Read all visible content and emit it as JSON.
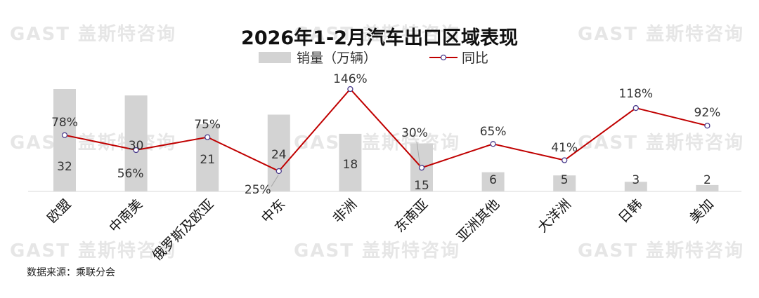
{
  "watermark": "GAST 盖斯特咨询",
  "source": "数据来源：乘联分会",
  "chart_data": {
    "type": "bar",
    "title": "2026年1-2月汽车出口区域表现",
    "legend_position": "top-center",
    "categories": [
      "欧盟",
      "中南美",
      "俄罗斯及欧亚",
      "中东",
      "非洲",
      "东南亚",
      "亚洲其他",
      "大洋洲",
      "日韩",
      "美加"
    ],
    "series": [
      {
        "name": "销量（万辆）",
        "type": "bar",
        "color": "#d3d3d3",
        "values": [
          32,
          30,
          21,
          24,
          18,
          15,
          6,
          5,
          3,
          2
        ]
      },
      {
        "name": "同比",
        "type": "line",
        "color": "#c00000",
        "values": [
          78,
          56,
          75,
          25,
          146,
          30,
          65,
          41,
          118,
          92
        ],
        "labels": [
          "78%",
          "56%",
          "75%",
          "25%",
          "146%",
          "30%",
          "65%",
          "41%",
          "118%",
          "92%"
        ]
      }
    ],
    "grid": false
  }
}
